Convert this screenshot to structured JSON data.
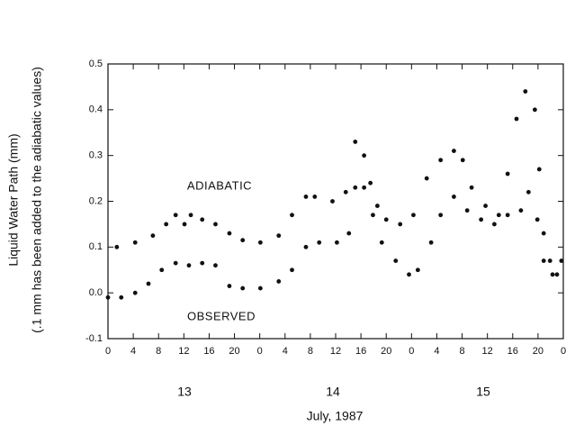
{
  "chart_data": {
    "type": "scatter",
    "xlabel": "July, 1987",
    "ylabel": [
      "Liquid Water Path (mm)",
      "(.1 mm has been added to the adiabatic values)"
    ],
    "annotations": [
      "13",
      "14",
      "15"
    ],
    "xlim": [
      0,
      72
    ],
    "ylim": [
      -0.1,
      0.5
    ],
    "xticks": [
      0,
      4,
      8,
      12,
      16,
      20,
      {
        "value": 24,
        "label": "0"
      },
      {
        "value": 28,
        "label": "4"
      },
      {
        "value": 32,
        "label": "8"
      },
      {
        "value": 36,
        "label": "12"
      },
      {
        "value": 40,
        "label": "16"
      },
      {
        "value": 44,
        "label": "20"
      },
      {
        "value": 48,
        "label": "0"
      },
      {
        "value": 52,
        "label": "4"
      },
      {
        "value": 56,
        "label": "8"
      },
      {
        "value": 60,
        "label": "12"
      },
      {
        "value": 64,
        "label": "16"
      },
      {
        "value": 68,
        "label": "20"
      },
      {
        "value": 72,
        "label": "0"
      }
    ],
    "yticks": [
      -0.1,
      {
        "value": 0,
        "label": "0.0"
      },
      0.1,
      0.2,
      0.3,
      0.4,
      0.5
    ],
    "series": [
      {
        "name": "ADIABATIC",
        "color": "#111111",
        "x": [
          1.4,
          4.3,
          7.1,
          9.2,
          10.7,
          12.1,
          13.1,
          14.9,
          17,
          19.2,
          21.3,
          24.1,
          27,
          29.1,
          31.3,
          32.7,
          35.5,
          37.6,
          39.1,
          40.5,
          41.5,
          42.6,
          44,
          46.2,
          48.3,
          50.4,
          52.6,
          54.7,
          56.1,
          57.5,
          59.7,
          61.8,
          63.2,
          64.6,
          66,
          67.5,
          68.2,
          68.9,
          69.9,
          71
        ],
        "values": [
          0.1,
          0.11,
          0.125,
          0.15,
          0.17,
          0.15,
          0.17,
          0.16,
          0.15,
          0.13,
          0.115,
          0.11,
          0.125,
          0.17,
          0.21,
          0.21,
          0.2,
          0.22,
          0.33,
          0.3,
          0.24,
          0.19,
          0.16,
          0.15,
          0.17,
          0.25,
          0.29,
          0.31,
          0.29,
          0.23,
          0.19,
          0.17,
          0.26,
          0.38,
          0.44,
          0.4,
          0.27,
          0.13,
          0.07,
          0.04
        ]
      },
      {
        "name": "OBSERVED",
        "color": "#111111",
        "x": [
          0,
          2.1,
          4.3,
          6.4,
          8.5,
          10.7,
          12.8,
          14.9,
          17,
          19.2,
          21.3,
          24.1,
          27,
          29.1,
          31.3,
          33.4,
          36.2,
          38.1,
          39.1,
          40.5,
          41.9,
          43.3,
          45.5,
          47.6,
          49,
          51.1,
          52.6,
          54.7,
          56.8,
          59,
          61.1,
          63.2,
          65.3,
          66.5,
          67.9,
          68.9,
          70.3,
          71.7
        ],
        "values": [
          -0.01,
          -0.01,
          0,
          0.02,
          0.05,
          0.065,
          0.06,
          0.065,
          0.06,
          0.015,
          0.01,
          0.01,
          0.025,
          0.05,
          0.1,
          0.11,
          0.11,
          0.13,
          0.23,
          0.23,
          0.17,
          0.11,
          0.07,
          0.04,
          0.05,
          0.11,
          0.17,
          0.21,
          0.18,
          0.16,
          0.15,
          0.17,
          0.18,
          0.22,
          0.16,
          0.07,
          0.04,
          0.07
        ]
      }
    ]
  }
}
